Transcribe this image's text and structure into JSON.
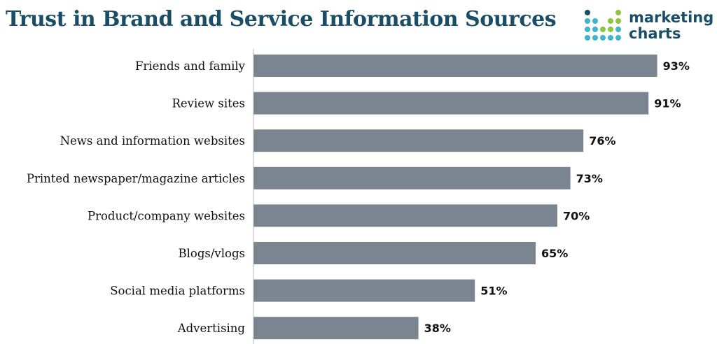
{
  "title": "Trust in Brand and Service Information Sources",
  "logo": {
    "line1": "marketing",
    "line2": "charts"
  },
  "colors": {
    "bar": "#7a8591",
    "title": "#1a4e66",
    "axis": "#b0b5ba"
  },
  "chart_data": {
    "type": "bar",
    "orientation": "horizontal",
    "title": "Trust in Brand and Service Information Sources",
    "categories": [
      "Friends and family",
      "Review sites",
      "News and information websites",
      "Printed newspaper/magazine articles",
      "Product/company websites",
      "Blogs/vlogs",
      "Social media platforms",
      "Advertising"
    ],
    "values": [
      93,
      91,
      76,
      73,
      70,
      65,
      51,
      38
    ],
    "value_labels": [
      "93%",
      "91%",
      "76%",
      "73%",
      "70%",
      "65%",
      "51%",
      "38%"
    ],
    "xlim": [
      0,
      100
    ],
    "grid": false,
    "legend": "none"
  }
}
